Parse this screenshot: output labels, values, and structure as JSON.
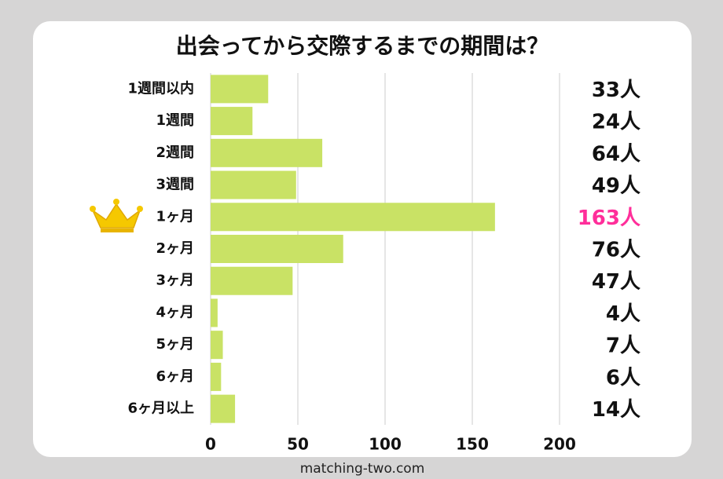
{
  "chart_data": {
    "type": "barh",
    "title": "出会ってから交際するまでの期間は？",
    "categories": [
      "1週間以内",
      "1週間",
      "2週間",
      "3週間",
      "1ヶ月",
      "2ヶ月",
      "3ヶ月",
      "4ヶ月",
      "5ヶ月",
      "6ヶ月",
      "6ヶ月以上"
    ],
    "values": [
      33,
      24,
      64,
      49,
      163,
      76,
      47,
      4,
      7,
      6,
      14
    ],
    "value_labels": [
      "33人",
      "24人",
      "64人",
      "49人",
      "163人",
      "76人",
      "47人",
      "4人",
      "7人",
      "6人",
      "14人"
    ],
    "color": "#c9e265",
    "label_color": "#111111",
    "highlight": {
      "index": 4,
      "color": "#ff2e9a"
    },
    "xlim": [
      0,
      200
    ],
    "xticks": [
      0,
      50,
      100,
      150,
      200
    ],
    "grid": true
  },
  "footer": "matching-two.com"
}
